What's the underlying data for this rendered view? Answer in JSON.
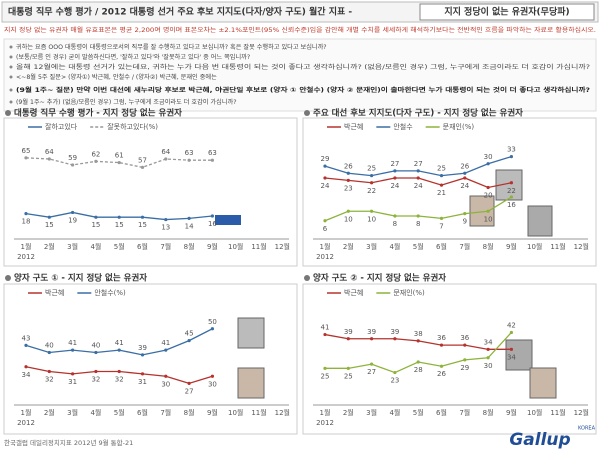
{
  "header": {
    "title": "대통령 직무 수행 평가 / 2012 대통령 선거 주요 후보 지지도(다자/양자 구도) 월간 지표 - ",
    "highlight": "지지 정당이 없는 유권자(무당파)"
  },
  "note": "지지 정당 없는 유권자 매월 유효표본은 평균 2,200여 명이며 표본오차는 ±2.1%포인트(95% 신뢰수준)임을 감안해 개별 수치를 세세하게 해석하기보다는 전반적인 흐름을 파악하는 자료로 활용하십시오.",
  "questions": [
    "귀하는 요즘 OOO 대통령이 대통령으로서의 직무를 잘 수행하고 있다고 보십니까? 혹은 잘못 수행하고 있다고 보십니까?",
    "(보통/모름 인 경우) 굳이 말씀하신다면, '잘하고 있다'와 '잘못하고 있다' 중 어느 쪽입니까?",
    "올해 12월에는 대통령 선거가 있는데요, 귀하는 누가 다음 번 대통령이 되는 것이 좋다고 생각하십니까? (없음/모름인 경우) 그럼, 누구에게 조금이라도 더 호감이 가십니까?",
    "<~8월 5주 질문> (양자①) 박근혜, 안철수 / (양자②) 박근혜, 문재인 중에는",
    "(9월 1주~ 질문) 만약 이번 대선에 새누리당 후보로 박근혜, 야권단일 후보로 (양자 ① 안철수) (양자 ② 문재인)이 출마한다면 누가 대통령이 되는 것이 더 좋다고 생각하십니까?",
    "(9월 1주~ 추가) (없음/모름인 경우) 그럼, 누구에게 조금이라도 더 호감이 가십니까?"
  ],
  "chart_data": [
    {
      "type": "line",
      "title": "대통령 직무 수행 평가 - 지지 정당 없는 유권자",
      "year": "2012",
      "categories": [
        "1월",
        "2월",
        "3월",
        "4월",
        "5월",
        "6월",
        "7월",
        "8월",
        "9월",
        "10월",
        "11월",
        "12월"
      ],
      "ylim": [
        0,
        80
      ],
      "series": [
        {
          "name": "잘하고있다",
          "color": "#3a6ea5",
          "dash": false,
          "values": [
            18,
            15,
            19,
            15,
            15,
            15,
            13,
            14,
            16,
            null,
            null,
            null
          ]
        },
        {
          "name": "잘못하고있다(%)",
          "color": "#999999",
          "dash": true,
          "values": [
            65,
            64,
            59,
            62,
            61,
            57,
            64,
            63,
            63,
            null,
            null,
            null
          ]
        }
      ]
    },
    {
      "type": "line",
      "title": "주요 대선 후보 지지도(다자 구도) - 지지 정당 없는 유권자",
      "year": "2012",
      "categories": [
        "1월",
        "2월",
        "3월",
        "4월",
        "5월",
        "6월",
        "7월",
        "8월",
        "9월",
        "10월",
        "11월",
        "12월"
      ],
      "ylim": [
        0,
        40
      ],
      "series": [
        {
          "name": "박근혜",
          "color": "#b5322d",
          "dash": false,
          "values": [
            24,
            23,
            22,
            24,
            24,
            21,
            24,
            20,
            22,
            null,
            null,
            null
          ]
        },
        {
          "name": "안철수",
          "color": "#3a6ea5",
          "dash": false,
          "values": [
            29,
            26,
            25,
            27,
            27,
            25,
            26,
            30,
            33,
            null,
            null,
            null
          ]
        },
        {
          "name": "문재인(%)",
          "color": "#8db33a",
          "dash": false,
          "values": [
            6,
            10,
            10,
            8,
            8,
            7,
            9,
            10,
            16,
            null,
            null,
            null
          ]
        }
      ]
    },
    {
      "type": "line",
      "title": "양자 구도 ① - 지지 정당 없는 유권자",
      "year": "2012",
      "categories": [
        "1월",
        "2월",
        "3월",
        "4월",
        "5월",
        "6월",
        "7월",
        "8월",
        "9월",
        "10월",
        "11월",
        "12월"
      ],
      "ylim": [
        20,
        60
      ],
      "series": [
        {
          "name": "박근혜",
          "color": "#b5322d",
          "dash": false,
          "values": [
            34,
            32,
            31,
            32,
            32,
            31,
            30,
            27,
            30,
            null,
            null,
            null
          ]
        },
        {
          "name": "안철수(%)",
          "color": "#3a6ea5",
          "dash": false,
          "values": [
            43,
            40,
            41,
            40,
            41,
            39,
            41,
            45,
            50,
            null,
            null,
            null
          ]
        }
      ]
    },
    {
      "type": "line",
      "title": "양자 구도 ② - 지지 정당 없는 유권자",
      "year": "2012",
      "categories": [
        "1월",
        "2월",
        "3월",
        "4월",
        "5월",
        "6월",
        "7월",
        "8월",
        "9월",
        "10월",
        "11월",
        "12월"
      ],
      "ylim": [
        10,
        55
      ],
      "series": [
        {
          "name": "박근혜",
          "color": "#b5322d",
          "dash": false,
          "values": [
            41,
            39,
            39,
            39,
            38,
            36,
            36,
            34,
            34,
            null,
            null,
            null
          ]
        },
        {
          "name": "문재인(%)",
          "color": "#8db33a",
          "dash": false,
          "values": [
            25,
            25,
            27,
            23,
            28,
            26,
            29,
            30,
            42,
            null,
            null,
            null
          ]
        }
      ]
    }
  ],
  "footer": "한국갤럽 데일리정치지표 2012년 9월 통합-21",
  "logo": {
    "name": "Gallup",
    "sub": "KOREA"
  }
}
